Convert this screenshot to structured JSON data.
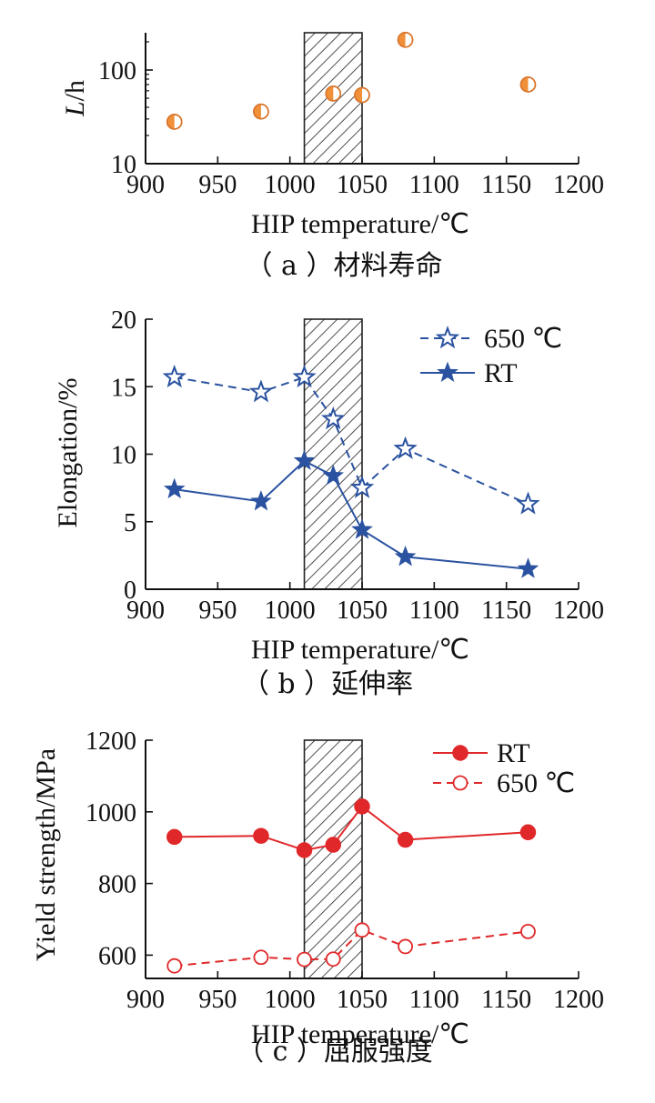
{
  "chart_data": [
    {
      "type": "scatter",
      "caption": "（ a ）材料寿命",
      "xlabel": "HIP temperature/℃",
      "ylabel_italic": "L",
      "ylabel_rest": "/h",
      "xlim": [
        900,
        1200
      ],
      "ylim": [
        10,
        250
      ],
      "yscale": "log",
      "xticks": [
        900,
        950,
        1000,
        1050,
        1100,
        1150,
        1200
      ],
      "yticks": [
        10,
        100
      ],
      "shaded_band": [
        1010,
        1050
      ],
      "colors": {
        "marker": "#f0913a",
        "marker_edge": "#d9742a"
      },
      "series": [
        {
          "marker": "half-filled-circle",
          "x": [
            920,
            980,
            1030,
            1050,
            1080,
            1165
          ],
          "y": [
            28,
            36,
            56,
            54,
            210,
            70
          ]
        }
      ]
    },
    {
      "type": "line",
      "caption": "（ b ）延伸率",
      "xlabel": "HIP temperature/℃",
      "ylabel": "Elongation/%",
      "xlim": [
        900,
        1200
      ],
      "ylim": [
        0,
        20
      ],
      "xticks": [
        900,
        950,
        1000,
        1050,
        1100,
        1150,
        1200
      ],
      "yticks": [
        0,
        5,
        10,
        15,
        20
      ],
      "shaded_band": [
        1010,
        1050
      ],
      "legend_position": "top-right",
      "colors": {
        "series": "#2a52a0"
      },
      "series": [
        {
          "name": "650 ℃",
          "style": "dashed",
          "marker": "open-star",
          "x": [
            920,
            980,
            1010,
            1030,
            1050,
            1080,
            1165
          ],
          "y": [
            15.7,
            14.6,
            15.7,
            12.6,
            7.5,
            10.4,
            6.3
          ]
        },
        {
          "name": "RT",
          "style": "solid",
          "marker": "filled-star",
          "x": [
            920,
            980,
            1010,
            1030,
            1050,
            1080,
            1165
          ],
          "y": [
            7.4,
            6.5,
            9.5,
            8.4,
            4.4,
            2.4,
            1.5
          ]
        }
      ]
    },
    {
      "type": "line",
      "caption": "（ c ）屈服强度",
      "xlabel": "HIP temperature/℃",
      "ylabel": "Yield strength/MPa",
      "xlim": [
        900,
        1200
      ],
      "ylim": [
        535,
        1200
      ],
      "xticks": [
        900,
        950,
        1000,
        1050,
        1100,
        1150,
        1200
      ],
      "yticks": [
        600,
        800,
        1000,
        1200
      ],
      "shaded_band": [
        1010,
        1050
      ],
      "legend_position": "top-right",
      "colors": {
        "series": "#e0282a"
      },
      "series": [
        {
          "name": "RT",
          "style": "solid",
          "marker": "filled-circle",
          "x": [
            920,
            980,
            1010,
            1030,
            1050,
            1080,
            1165
          ],
          "y": [
            930,
            933,
            893,
            908,
            1015,
            922,
            943
          ]
        },
        {
          "name": "650 ℃",
          "style": "dashed",
          "marker": "open-circle",
          "x": [
            920,
            980,
            1010,
            1030,
            1050,
            1080,
            1165
          ],
          "y": [
            570,
            594,
            588,
            589,
            670,
            624,
            666
          ]
        }
      ]
    }
  ]
}
